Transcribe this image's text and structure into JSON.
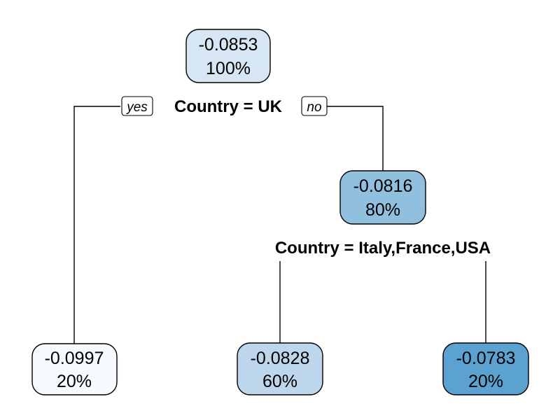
{
  "tree": {
    "root": {
      "value": "-0.0853",
      "share": "100%",
      "fill": "#d6e6f5"
    },
    "root_split": {
      "label": "Country = UK",
      "yes_tag": "yes",
      "no_tag": "no"
    },
    "node_right": {
      "value": "-0.0816",
      "share": "80%",
      "fill": "#90c0de"
    },
    "right_split": {
      "label": "Country = Italy,France,USA"
    },
    "leaf_left": {
      "value": "-0.0997",
      "share": "20%",
      "fill": "#f6fafe"
    },
    "leaf_middle": {
      "value": "-0.0828",
      "share": "60%",
      "fill": "#bdd6ec"
    },
    "leaf_right": {
      "value": "-0.0783",
      "share": "20%",
      "fill": "#5ba2d0"
    }
  }
}
